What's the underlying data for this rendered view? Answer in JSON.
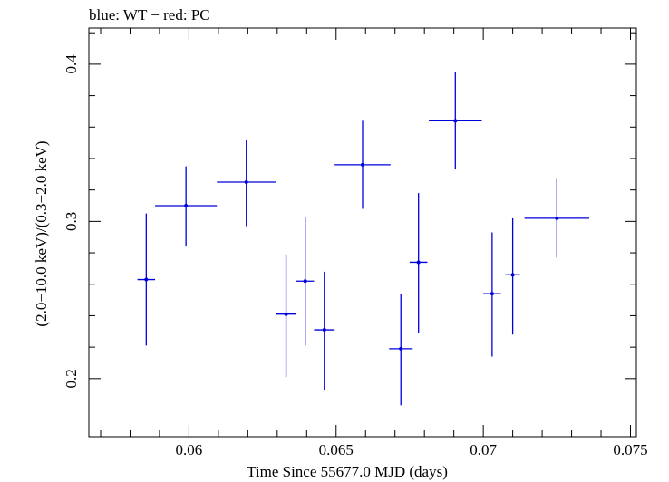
{
  "chart_data": {
    "type": "scatter",
    "title": "blue: WT − red: PC",
    "xlabel": "Time Since 55677.0 MJD (days)",
    "ylabel": "(2.0−10.0 keV)/(0.3−2.0 keV)",
    "xlim": [
      0.0566,
      0.0752
    ],
    "ylim": [
      0.163,
      0.423
    ],
    "x_ticks": [
      {
        "value": 0.06,
        "label": "0.06"
      },
      {
        "value": 0.065,
        "label": "0.065"
      },
      {
        "value": 0.07,
        "label": "0.07"
      },
      {
        "value": 0.075,
        "label": "0.075"
      }
    ],
    "y_ticks": [
      {
        "value": 0.2,
        "label": "0.2"
      },
      {
        "value": 0.3,
        "label": "0.3"
      },
      {
        "value": 0.4,
        "label": "0.4"
      }
    ],
    "x_minor_step": 0.001,
    "y_minor_step": 0.02,
    "grid": false,
    "series": [
      {
        "name": "WT",
        "color": "#0000dd",
        "points": [
          {
            "x": 0.05855,
            "y": 0.263,
            "xerr": 0.0003,
            "ylo": 0.221,
            "yhi": 0.305
          },
          {
            "x": 0.0599,
            "y": 0.31,
            "xerr": 0.00105,
            "ylo": 0.284,
            "yhi": 0.335
          },
          {
            "x": 0.06195,
            "y": 0.325,
            "xerr": 0.001,
            "ylo": 0.297,
            "yhi": 0.352
          },
          {
            "x": 0.0633,
            "y": 0.241,
            "xerr": 0.00035,
            "ylo": 0.201,
            "yhi": 0.279
          },
          {
            "x": 0.06395,
            "y": 0.262,
            "xerr": 0.0003,
            "ylo": 0.221,
            "yhi": 0.303
          },
          {
            "x": 0.0646,
            "y": 0.231,
            "xerr": 0.00035,
            "ylo": 0.193,
            "yhi": 0.268
          },
          {
            "x": 0.0659,
            "y": 0.336,
            "xerr": 0.00095,
            "ylo": 0.308,
            "yhi": 0.364
          },
          {
            "x": 0.0672,
            "y": 0.219,
            "xerr": 0.0004,
            "ylo": 0.183,
            "yhi": 0.254
          },
          {
            "x": 0.0678,
            "y": 0.274,
            "xerr": 0.0003,
            "ylo": 0.229,
            "yhi": 0.318
          },
          {
            "x": 0.06905,
            "y": 0.364,
            "xerr": 0.0009,
            "ylo": 0.333,
            "yhi": 0.395
          },
          {
            "x": 0.0703,
            "y": 0.254,
            "xerr": 0.0003,
            "ylo": 0.214,
            "yhi": 0.293
          },
          {
            "x": 0.071,
            "y": 0.266,
            "xerr": 0.00025,
            "ylo": 0.228,
            "yhi": 0.302
          },
          {
            "x": 0.0725,
            "y": 0.302,
            "xerr": 0.0011,
            "ylo": 0.277,
            "yhi": 0.327
          }
        ]
      }
    ]
  }
}
